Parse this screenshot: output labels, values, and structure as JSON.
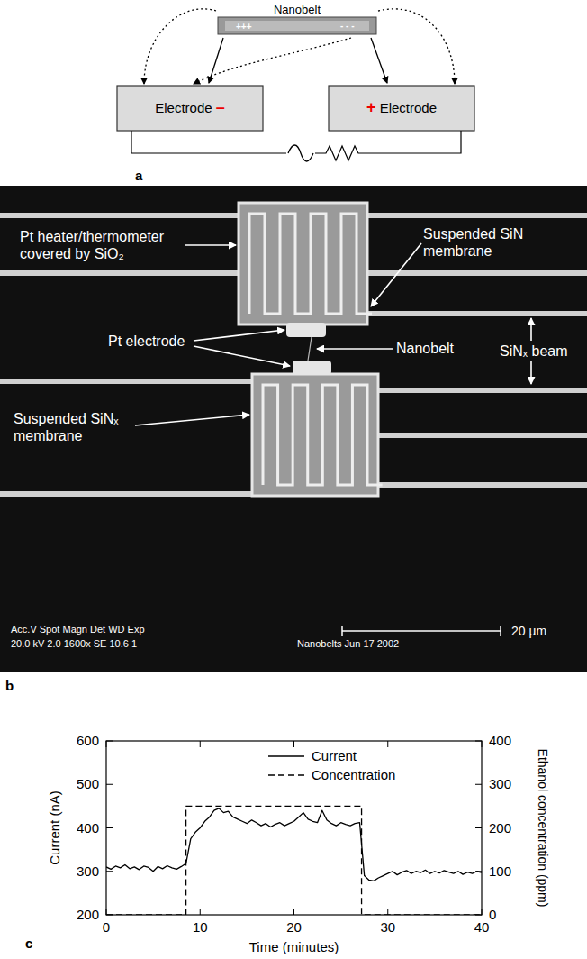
{
  "chart_data": {
    "type": "line",
    "label": "c",
    "x_label": "Time (minutes)",
    "y_label": "Current (nA)",
    "y2_label": "Ethanol concentration (ppm)",
    "xlim": [
      0,
      40
    ],
    "xticks": [
      0,
      10,
      20,
      30,
      40
    ],
    "ylim": [
      200,
      600
    ],
    "yticks": [
      200,
      300,
      400,
      500,
      600
    ],
    "y2lim": [
      0,
      400
    ],
    "y2ticks": [
      0,
      100,
      200,
      300,
      400
    ],
    "grid": false,
    "legend": "top",
    "series": [
      {
        "name": "Current",
        "color": "#000000",
        "line_style": "solid",
        "x": [
          0,
          0.5,
          1,
          1.5,
          2,
          2.5,
          3,
          3.5,
          4,
          4.5,
          5,
          5.5,
          6,
          6.5,
          7,
          7.5,
          8,
          8.5,
          9,
          9.5,
          10,
          10.5,
          11,
          11.5,
          12,
          12.5,
          13,
          13.5,
          14,
          14.5,
          15,
          15.5,
          16,
          16.5,
          17,
          17.5,
          18,
          18.5,
          19,
          19.5,
          20,
          20.5,
          21,
          21.5,
          22,
          22.5,
          23,
          23.5,
          24,
          24.5,
          25,
          25.5,
          26,
          26.5,
          27,
          27.5,
          28,
          28.5,
          29,
          29.5,
          30,
          30.5,
          31,
          31.5,
          32,
          32.5,
          33,
          33.5,
          34,
          34.5,
          35,
          35.5,
          36,
          36.5,
          37,
          37.5,
          38,
          38.5,
          39,
          39.5,
          40
        ],
        "values": [
          310,
          305,
          312,
          308,
          315,
          306,
          310,
          304,
          312,
          309,
          300,
          311,
          306,
          313,
          308,
          305,
          311,
          318,
          375,
          390,
          400,
          415,
          425,
          440,
          445,
          435,
          438,
          425,
          420,
          415,
          410,
          418,
          412,
          405,
          410,
          402,
          408,
          412,
          405,
          410,
          415,
          425,
          435,
          420,
          415,
          412,
          440,
          418,
          410,
          405,
          412,
          408,
          405,
          410,
          412,
          290,
          280,
          278,
          285,
          290,
          295,
          300,
          292,
          298,
          302,
          295,
          300,
          297,
          303,
          295,
          300,
          296,
          302,
          298,
          295,
          300,
          293,
          298,
          295,
          300,
          297
        ]
      },
      {
        "name": "Concentration",
        "color": "#000000",
        "line_style": "dashed",
        "axis": "y2",
        "x": [
          0,
          8.5,
          8.5,
          27.2,
          27.2,
          40
        ],
        "values": [
          0,
          0,
          250,
          250,
          0,
          0
        ]
      }
    ]
  },
  "diagram": {
    "label": "a",
    "nanobelt": {
      "label": "Nanobelt",
      "positive": "+++",
      "negative": "- - -"
    },
    "electrodes": [
      {
        "label": "Electrode",
        "sign": "–"
      },
      {
        "label": "Electrode",
        "sign": "+"
      }
    ]
  },
  "image": {
    "label": "b",
    "annotations": [
      {
        "lines": [
          "Pt heater/thermometer",
          "covered by SiO₂"
        ]
      },
      {
        "lines": [
          "Suspended SiN",
          "membrane"
        ]
      },
      {
        "lines": [
          "Pt electrode"
        ]
      },
      {
        "lines": [
          "Nanobelt"
        ]
      },
      {
        "lines": [
          "SiNₓ beam"
        ]
      },
      {
        "lines": [
          "Suspended SiNₓ",
          "membrane"
        ]
      }
    ],
    "info": [
      "Acc.V   Spot  Magn    Det  WD   Exp",
      "20.0 kV  2.0   1600x    SE   10.6  1"
    ],
    "caption": "Nanobelts Jun 17 2002",
    "scale": "20 µm"
  }
}
